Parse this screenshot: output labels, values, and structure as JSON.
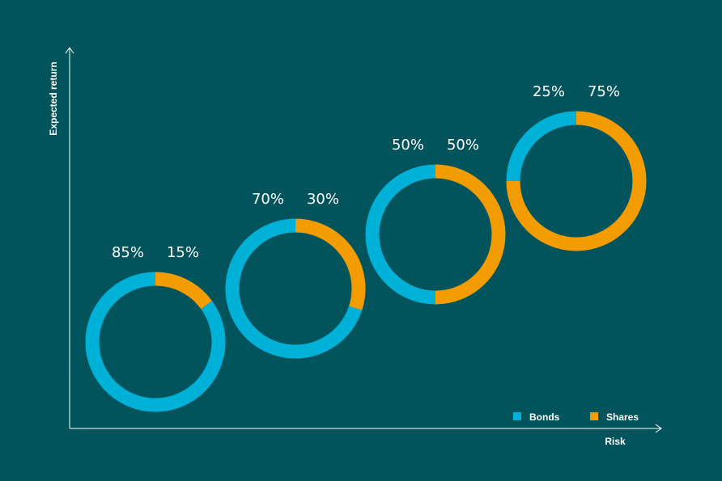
{
  "chart_data": {
    "type": "pie",
    "variant": "donut",
    "xlabel": "Risk",
    "ylabel": "Expected return",
    "grid": false,
    "legend_placement": "bottom-right",
    "series_colors": {
      "Bonds": "#00b1d7",
      "Shares": "#f39c00"
    },
    "background": "#02545c",
    "legend": [
      {
        "name": "Bonds",
        "color": "#00b1d7"
      },
      {
        "name": "Shares",
        "color": "#f39c00"
      }
    ],
    "donuts": [
      {
        "bonds": 85,
        "shares": 15,
        "bonds_label": "85%",
        "shares_label": "15%"
      },
      {
        "bonds": 70,
        "shares": 30,
        "bonds_label": "70%",
        "shares_label": "30%"
      },
      {
        "bonds": 50,
        "shares": 50,
        "bonds_label": "50%",
        "shares_label": "50%"
      },
      {
        "bonds": 25,
        "shares": 75,
        "bonds_label": "25%",
        "shares_label": "75%"
      }
    ]
  }
}
